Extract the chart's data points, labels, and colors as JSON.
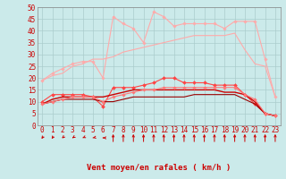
{
  "bg_color": "#cbeaea",
  "grid_color": "#aacccc",
  "xlabel": "Vent moyen/en rafales ( km/h )",
  "x": [
    0,
    1,
    2,
    3,
    4,
    5,
    6,
    7,
    8,
    9,
    10,
    11,
    12,
    13,
    14,
    15,
    16,
    17,
    18,
    19,
    20,
    21,
    22,
    23
  ],
  "series": [
    {
      "name": "max_gust_light",
      "color": "#ffaaaa",
      "linewidth": 0.8,
      "marker": "D",
      "markersize": 1.8,
      "y": [
        19,
        22,
        24,
        26,
        27,
        27,
        20,
        46,
        43,
        41,
        35,
        48,
        46,
        42,
        43,
        43,
        43,
        43,
        41,
        44,
        44,
        44,
        28,
        12
      ]
    },
    {
      "name": "mean_gust_light",
      "color": "#ffaaaa",
      "linewidth": 0.8,
      "marker": null,
      "markersize": 0,
      "y": [
        19,
        21,
        22,
        25,
        26,
        28,
        28,
        29,
        31,
        32,
        33,
        34,
        35,
        36,
        37,
        38,
        38,
        38,
        38,
        39,
        32,
        26,
        25,
        12
      ]
    },
    {
      "name": "max_gust_dark",
      "color": "#ff4444",
      "linewidth": 0.8,
      "marker": "D",
      "markersize": 2.0,
      "y": [
        10,
        13,
        13,
        13,
        13,
        12,
        8,
        16,
        16,
        16,
        17,
        18,
        20,
        20,
        18,
        18,
        18,
        17,
        17,
        17,
        13,
        9,
        5,
        4
      ]
    },
    {
      "name": "mean_wind_dark",
      "color": "#cc0000",
      "linewidth": 1.0,
      "marker": null,
      "markersize": 0,
      "y": [
        9,
        11,
        12,
        12,
        12,
        12,
        12,
        13,
        14,
        15,
        15,
        15,
        15,
        15,
        15,
        15,
        15,
        15,
        14,
        14,
        13,
        10,
        5,
        4
      ]
    },
    {
      "name": "min_wind_dark",
      "color": "#990000",
      "linewidth": 0.8,
      "marker": null,
      "markersize": 0,
      "y": [
        9,
        10,
        11,
        11,
        11,
        11,
        10,
        10,
        11,
        12,
        12,
        12,
        12,
        12,
        12,
        13,
        13,
        13,
        13,
        13,
        11,
        9,
        5,
        4
      ]
    },
    {
      "name": "mean_wind_light",
      "color": "#ff7777",
      "linewidth": 0.8,
      "marker": "D",
      "markersize": 1.8,
      "y": [
        9,
        10,
        11,
        12,
        12,
        12,
        10,
        12,
        13,
        14,
        15,
        15,
        16,
        16,
        16,
        16,
        16,
        16,
        16,
        16,
        13,
        11,
        5,
        4
      ]
    }
  ],
  "ylim": [
    0,
    50
  ],
  "yticks": [
    0,
    5,
    10,
    15,
    20,
    25,
    30,
    35,
    40,
    45,
    50
  ],
  "xlim": [
    -0.5,
    23.5
  ],
  "xticks": [
    0,
    1,
    2,
    3,
    4,
    5,
    6,
    7,
    8,
    9,
    10,
    11,
    12,
    13,
    14,
    15,
    16,
    17,
    18,
    19,
    20,
    21,
    22,
    23
  ],
  "xlabel_fontsize": 6.5,
  "tick_fontsize": 5.5,
  "arrow_color": "#cc0000"
}
